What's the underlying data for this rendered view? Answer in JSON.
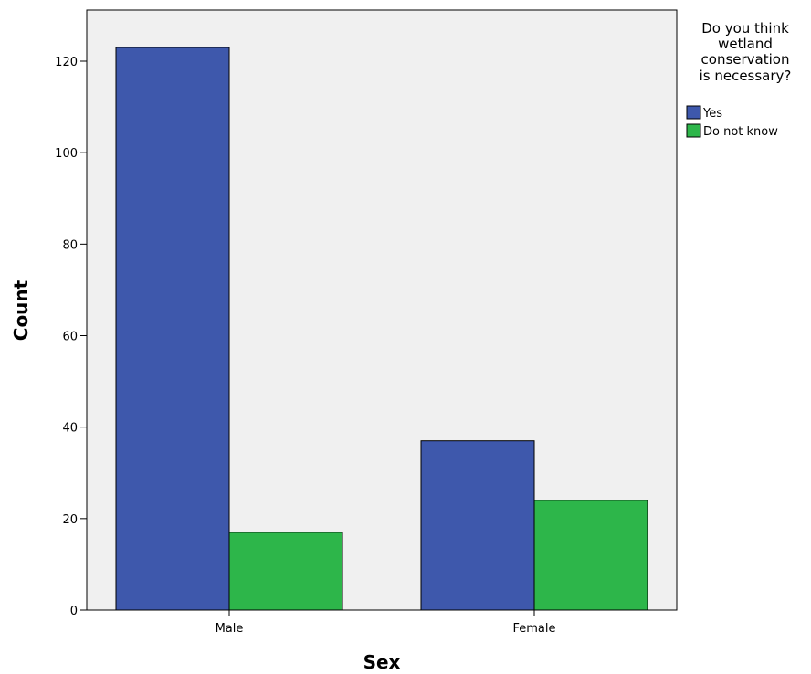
{
  "chart_data": {
    "type": "bar",
    "categories": [
      "Male",
      "Female"
    ],
    "series": [
      {
        "name": "Yes",
        "values": [
          123,
          37
        ],
        "color": "#3e58ac"
      },
      {
        "name": "Do not know",
        "values": [
          17,
          24
        ],
        "color": "#2db64a"
      }
    ],
    "xlabel": "Sex",
    "ylabel": "Count",
    "ylim": [
      0,
      130
    ],
    "yticks": [
      0,
      20,
      40,
      60,
      80,
      100,
      120
    ],
    "grid": false,
    "plot_background": "#f0f0f0",
    "legend": {
      "title_lines": [
        "Do you think",
        "wetland",
        "conservation",
        "is necessary?"
      ],
      "placement": "right"
    }
  }
}
